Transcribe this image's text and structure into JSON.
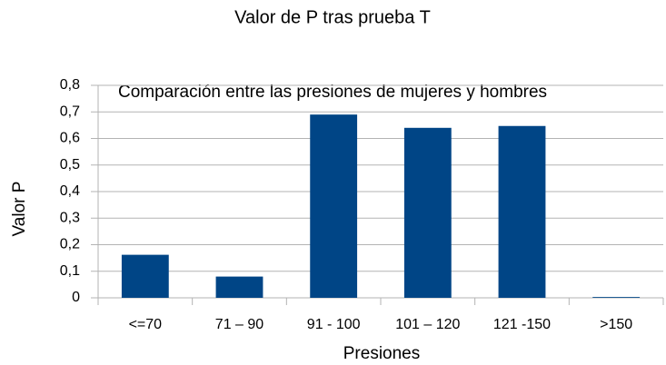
{
  "chart_data": {
    "type": "bar",
    "title": "Valor de P tras prueba T",
    "subtitle": "Comparación entre las presiones de mujeres y hombres",
    "y_label": "Valor P",
    "x_label": "Presiones",
    "categories": [
      "<=70",
      "71 – 90",
      "91 - 100",
      "101 – 120",
      "121 -150",
      ">150"
    ],
    "values": [
      0.162,
      0.08,
      0.69,
      0.64,
      0.647,
      0.003
    ],
    "color": "#004586",
    "ylim": [
      0,
      0.8
    ],
    "yticks": [
      0,
      {
        "value": 0.1,
        "label": "0,1"
      },
      {
        "value": 0.2,
        "label": "0,2"
      },
      {
        "value": 0.3,
        "label": "0,3"
      },
      {
        "value": 0.4,
        "label": "0,4"
      },
      {
        "value": 0.5,
        "label": "0,5"
      },
      {
        "value": 0.6,
        "label": "0,6"
      },
      {
        "value": 0.7,
        "label": "0,7"
      },
      {
        "value": 0.8,
        "label": "0,8"
      }
    ],
    "grid": true
  }
}
